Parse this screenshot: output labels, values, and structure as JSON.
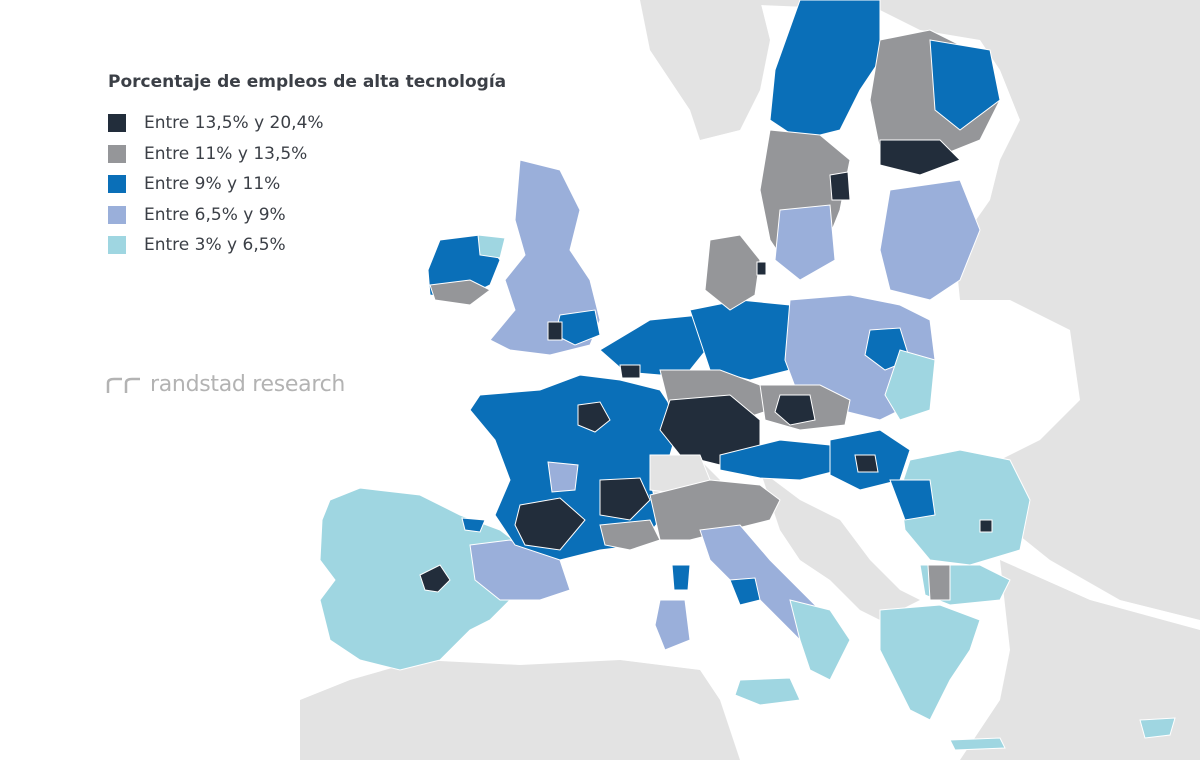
{
  "legend": {
    "title": "Porcentaje de empleos de alta tecnología",
    "items": [
      {
        "label": "Entre 13,5% y 20,4%",
        "color": "#222d3b"
      },
      {
        "label": "Entre 11% y 13,5%",
        "color": "#959699"
      },
      {
        "label": "Entre 9% y 11%",
        "color": "#0a6fb8"
      },
      {
        "label": "Entre 6,5% y 9%",
        "color": "#9aafda"
      },
      {
        "label": "Entre 3% y 6,5%",
        "color": "#9fd6e1"
      }
    ]
  },
  "brand": {
    "text": "randstad research",
    "icon": "randstad-logo-icon",
    "color": "#b3b3b3"
  },
  "map": {
    "background_land_color": "#e3e3e3",
    "sea_color": "#ffffff",
    "border_color": "#ffffff"
  }
}
